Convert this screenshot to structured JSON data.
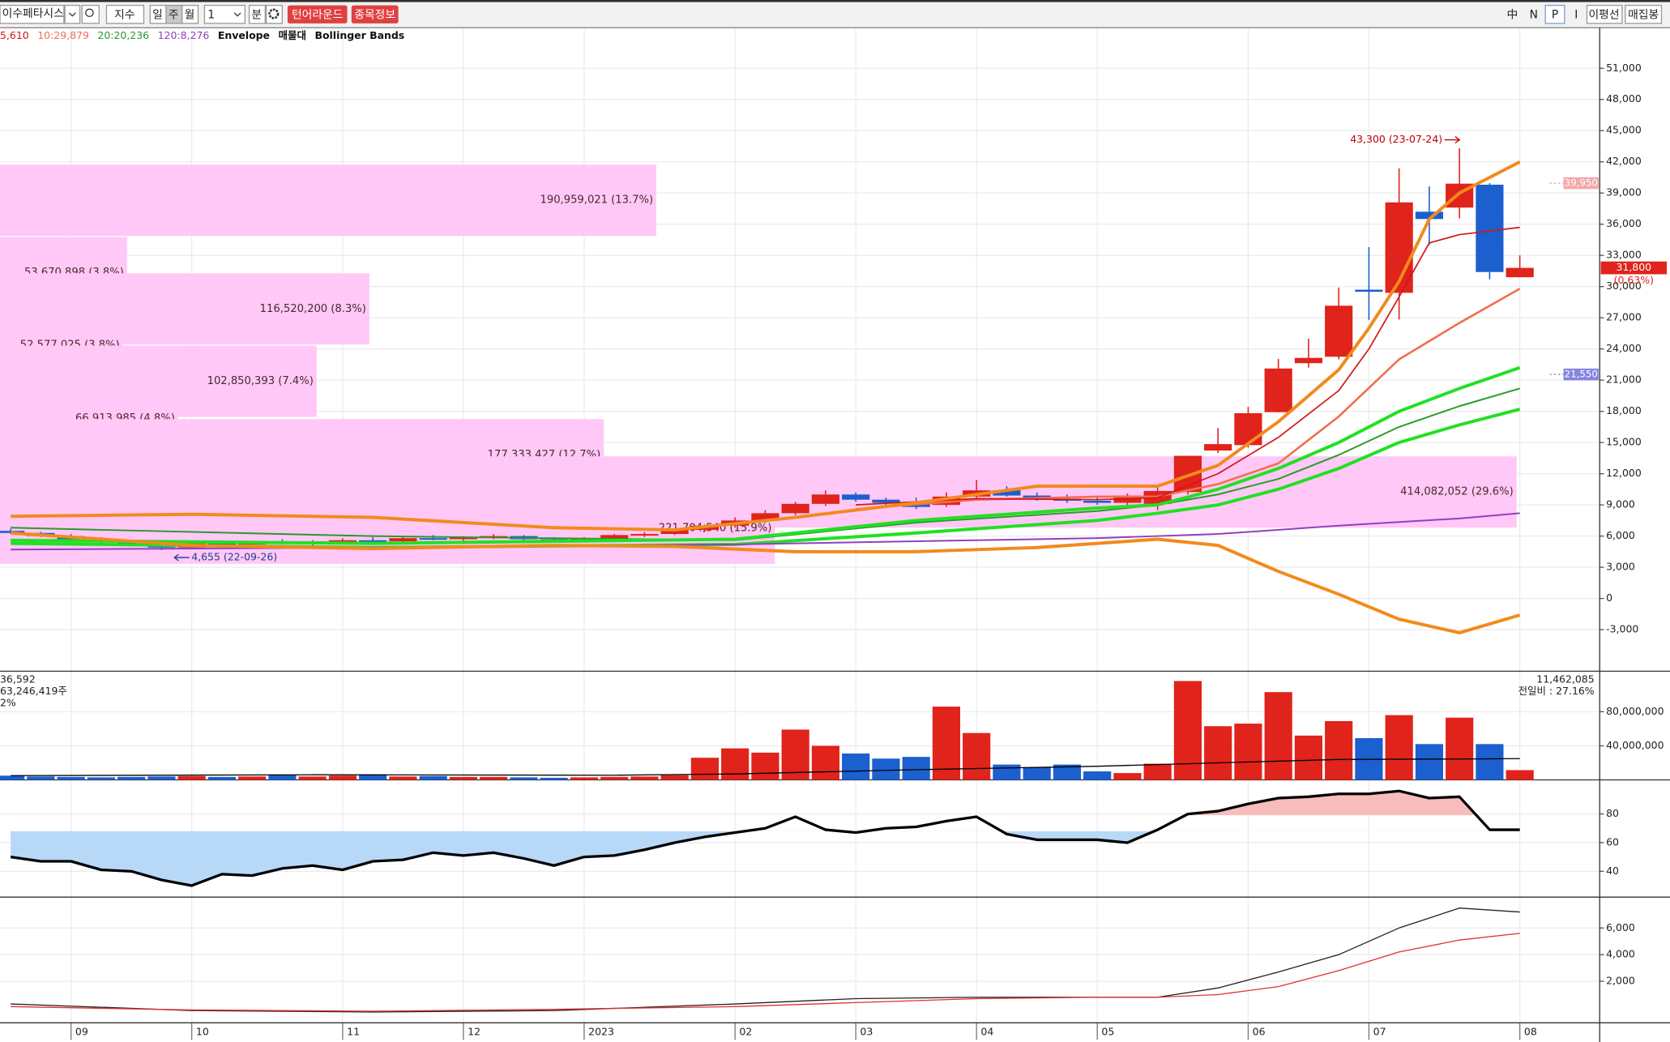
{
  "toolbar": {
    "stock": "이수페타시스",
    "index": "지수",
    "periods": [
      "일",
      "주",
      "월"
    ],
    "count": "1",
    "minute": "분",
    "buttons": [
      "턴어라운드",
      "종목정보"
    ],
    "right": [
      "中",
      "N",
      "P",
      "I",
      "이평선",
      "매집봉"
    ]
  },
  "legend": [
    {
      "text": "5,610",
      "color": "#d01818"
    },
    {
      "text": "10:29,879",
      "color": "#f07050"
    },
    {
      "text": "20:20,236",
      "color": "#2a9a2a"
    },
    {
      "text": "120:8,276",
      "color": "#9040c0"
    },
    {
      "text": "Envelope",
      "color": "#111111"
    },
    {
      "text": "매물대",
      "color": "#111111"
    },
    {
      "text": "Bollinger Bands",
      "color": "#111111"
    }
  ],
  "volume_info": {
    "left": [
      "36,592",
      "63,246,419주",
      "2%"
    ],
    "right": [
      "11,462,085",
      "전일비 : 27.16%"
    ]
  },
  "chart_data": [
    {
      "type": "candlestick",
      "up_color": "#e0231b",
      "down_color": "#1c5fcf",
      "grid": true,
      "categories": [
        null,
        null,
        "09",
        null,
        null,
        null,
        "10",
        null,
        null,
        null,
        null,
        "11",
        null,
        null,
        null,
        "12",
        null,
        null,
        null,
        "2023",
        null,
        null,
        null,
        null,
        "02",
        null,
        null,
        null,
        "03",
        null,
        null,
        null,
        "04",
        null,
        null,
        null,
        "05",
        null,
        null,
        null,
        null,
        "06",
        null,
        null,
        null,
        "07",
        null,
        null,
        null,
        null,
        "08"
      ],
      "open": [
        6500,
        6300,
        6000,
        5700,
        5400,
        5100,
        4900,
        5300,
        5200,
        5400,
        5300,
        5500,
        5600,
        5500,
        5800,
        5700,
        5900,
        6000,
        5700,
        5600,
        5700,
        6100,
        6200,
        6600,
        7000,
        7500,
        8200,
        9100,
        10000,
        9500,
        9200,
        9000,
        9800,
        10400,
        9900,
        9600,
        9400,
        9200,
        9100,
        10240,
        14230,
        14750,
        17920,
        22630,
        23250,
        29700,
        29400,
        37200,
        37600,
        39800,
        30900
      ],
      "high": [
        6700,
        6400,
        6200,
        5900,
        5600,
        5300,
        5500,
        5600,
        5500,
        5700,
        5600,
        5800,
        5900,
        6000,
        6100,
        6000,
        6200,
        6100,
        5900,
        5900,
        6200,
        6400,
        6700,
        7100,
        7800,
        8500,
        9300,
        10400,
        10200,
        9700,
        9700,
        10200,
        11400,
        10800,
        10200,
        10000,
        9800,
        10100,
        10700,
        13720,
        16390,
        18430,
        23040,
        24990,
        29900,
        33800,
        41370,
        39630,
        43300,
        39950,
        33000
      ],
      "low": [
        6200,
        5900,
        5600,
        5300,
        5000,
        4655,
        4800,
        5100,
        5000,
        5200,
        5100,
        5300,
        5400,
        5400,
        5600,
        5500,
        5700,
        5600,
        5400,
        5400,
        5600,
        5900,
        6100,
        6400,
        6800,
        7300,
        8000,
        8900,
        9300,
        8800,
        8600,
        8800,
        9600,
        9800,
        9400,
        9200,
        9000,
        9000,
        8500,
        10000,
        14000,
        14500,
        17900,
        22200,
        23000,
        26800,
        26830,
        34000,
        36560,
        30700,
        30900
      ],
      "close": [
        6300,
        6000,
        5700,
        5400,
        5100,
        4900,
        5300,
        5200,
        5400,
        5300,
        5500,
        5600,
        5500,
        5800,
        5700,
        5900,
        6000,
        5700,
        5600,
        5700,
        6100,
        6200,
        6600,
        7000,
        7500,
        8200,
        9100,
        10000,
        9500,
        9200,
        8800,
        9800,
        10400,
        9900,
        9600,
        9400,
        9200,
        9900,
        10340,
        13720,
        14850,
        17820,
        22120,
        23140,
        28160,
        29500,
        38100,
        36500,
        39900,
        31400,
        31800
      ],
      "ylim": [
        -7000,
        54800
      ],
      "yticks": [
        {
          "value": 51000,
          "label": "51,000"
        },
        {
          "value": 48000,
          "label": "48,000"
        },
        {
          "value": 45000,
          "label": "45,000"
        },
        {
          "value": 42000,
          "label": "42,000"
        },
        {
          "value": 39000,
          "label": "39,000"
        },
        {
          "value": 36000,
          "label": "36,000"
        },
        {
          "value": 33000,
          "label": "33,000"
        },
        {
          "value": 30000,
          "label": "30,000"
        },
        {
          "value": 27000,
          "label": "27,000"
        },
        {
          "value": 24000,
          "label": "24,000"
        },
        {
          "value": 21000,
          "label": "21,000"
        },
        {
          "value": 18000,
          "label": "18,000"
        },
        {
          "value": 15000,
          "label": "15,000"
        },
        {
          "value": 12000,
          "label": "12,000"
        },
        {
          "value": 9000,
          "label": "9,000"
        },
        {
          "value": 6000,
          "label": "6,000"
        },
        {
          "value": 3000,
          "label": "3,000"
        },
        0,
        {
          "value": -3000,
          "label": "-3,000"
        }
      ],
      "lines": [
        {
          "color": "#2a9a2a",
          "width": 1.5,
          "x": [
            0,
            12,
            24,
            30,
            36,
            38,
            40,
            42,
            44,
            46,
            48,
            50
          ],
          "values": [
            6800,
            6000,
            5600,
            7300,
            8400,
            9000,
            10000,
            11500,
            13800,
            16500,
            18500,
            20200
          ]
        },
        {
          "color": "#22e022",
          "width": 3,
          "x": [
            0,
            12,
            24,
            30,
            36,
            38,
            40,
            42,
            44,
            46,
            48,
            50
          ],
          "values": [
            5600,
            5300,
            5700,
            7500,
            8700,
            9000,
            10500,
            12500,
            15000,
            18000,
            20200,
            22200
          ]
        },
        {
          "color": "#22e022",
          "width": 3,
          "x": [
            0,
            12,
            24,
            30,
            36,
            38,
            40,
            42,
            44,
            46,
            48,
            50
          ],
          "values": [
            5300,
            4900,
            5200,
            6300,
            7500,
            8200,
            9000,
            10500,
            12500,
            15000,
            16700,
            18200
          ]
        },
        {
          "color": "#9040c0",
          "width": 1.5,
          "x": [
            0,
            12,
            24,
            30,
            36,
            40,
            44,
            48,
            50
          ],
          "values": [
            4700,
            4900,
            5200,
            5500,
            5800,
            6200,
            7000,
            7700,
            8200
          ]
        },
        {
          "color": "#f07050",
          "width": 2,
          "x": [
            28,
            32,
            36,
            38,
            40,
            42,
            44,
            46,
            48,
            50
          ],
          "values": [
            8600,
            9500,
            9800,
            9800,
            11000,
            13000,
            17500,
            23000,
            26500,
            29800
          ]
        },
        {
          "color": "#d01818",
          "width": 1.3,
          "x": [
            28,
            32,
            36,
            38,
            40,
            42,
            44,
            45,
            46,
            47,
            48,
            50
          ],
          "values": [
            9000,
            9600,
            9500,
            9700,
            12000,
            15500,
            20000,
            24000,
            29000,
            34200,
            35000,
            35700
          ]
        },
        {
          "color": "#f28a1c",
          "width": 3,
          "x": [
            0,
            6,
            12,
            18,
            22,
            26,
            30,
            34,
            38,
            40,
            42,
            44,
            45,
            46,
            47,
            48,
            50
          ],
          "values": [
            7900,
            8100,
            7800,
            6800,
            6600,
            7800,
            9200,
            10800,
            10800,
            12800,
            17000,
            22000,
            26000,
            30500,
            36500,
            39000,
            42000
          ]
        },
        {
          "color": "#f28a1c",
          "width": 3,
          "x": [
            0,
            6,
            12,
            18,
            22,
            26,
            30,
            34,
            38,
            40,
            42,
            44,
            46,
            48,
            50
          ],
          "values": [
            6300,
            5100,
            4800,
            5100,
            5000,
            4500,
            4500,
            4900,
            5700,
            5100,
            2600,
            400,
            -2000,
            -3300,
            -1600
          ]
        }
      ],
      "volume_profile": {
        "color": "#ffc8f7",
        "prices": [
          38300,
          31340,
          27850,
          24370,
          20890,
          17310,
          13820,
          10240,
          6760
        ],
        "values": [
          190959021,
          53670898,
          116520200,
          52577025,
          102850393,
          66913985,
          177333427,
          414082052,
          221704540
        ],
        "value_labels": [
          "190,959,021 (13.7%)",
          "53,670,898 (3.8%)",
          "116,520,200 (8.3%)",
          "52,577,025 (3.8%)",
          "102,850,393 (7.4%)",
          "66,913,985 (4.8%)",
          "177,333,427 (12.7%)",
          "414,082,052 (29.6%)",
          "221,704,540 (15.9%)"
        ]
      },
      "price_labels": [
        {
          "value": 39950,
          "label": "39,950",
          "color": "#f4a8a8"
        },
        {
          "value": 31800,
          "label": "31,800",
          "sub": "(0.63%)",
          "color": "#e0231b"
        },
        {
          "value": 21550,
          "label": "21,550",
          "color": "#8585e0"
        }
      ],
      "annotations": [
        {
          "x": 48,
          "value": 43300,
          "label": "43,300 (23-07-24)",
          "color": "#c00000"
        },
        {
          "x": 5,
          "value": 4655,
          "label": "4,655 (22-09-26)",
          "color": "#1c3f8f"
        }
      ]
    },
    {
      "type": "bar",
      "grid": true,
      "values": [
        5000000,
        4000000,
        3500000,
        3000000,
        3500000,
        4000000,
        4500000,
        3500000,
        4000000,
        5500000,
        4000000,
        5000000,
        6500000,
        4000000,
        4500000,
        3500000,
        3500000,
        3000000,
        2500000,
        3000000,
        3500000,
        4000000,
        5500000,
        26000000,
        37000000,
        32000000,
        59000000,
        40000000,
        31000000,
        25000000,
        27000000,
        86000000,
        55000000,
        18000000,
        15000000,
        18000000,
        10000000,
        8000000,
        19000000,
        116000000,
        63000000,
        66000000,
        103000000,
        52000000,
        69000000,
        49000000,
        76000000,
        42000000,
        73000000,
        42000000,
        11462085
      ],
      "ylim": [
        0,
        125000000
      ],
      "yticks": [
        {
          "value": 80000000,
          "label": "80,000,000"
        },
        {
          "value": 40000000,
          "label": "40,000,000"
        }
      ],
      "ma": {
        "color": "#000000",
        "x": [
          0,
          10,
          20,
          24,
          30,
          36,
          40,
          44,
          48,
          50
        ],
        "values": [
          5000000,
          6000000,
          5500000,
          7000000,
          12000000,
          16000000,
          20000000,
          24000000,
          24500000,
          25000000
        ]
      }
    },
    {
      "type": "line",
      "grid": true,
      "color": "#000000",
      "values": [
        50,
        47,
        47,
        41,
        40,
        34,
        30,
        38,
        37,
        42,
        44,
        41,
        47,
        48,
        53,
        51,
        53,
        49,
        44,
        50,
        51,
        55,
        60,
        64,
        67,
        70,
        78,
        69,
        67,
        70,
        71,
        75,
        78,
        66,
        62,
        62,
        62,
        60,
        69,
        80,
        82,
        87,
        91,
        92,
        94,
        94,
        96,
        91,
        92,
        69,
        69
      ],
      "ylim": [
        22,
        103
      ],
      "yticks": [
        80,
        60,
        40
      ],
      "fills": [
        {
          "level": 68,
          "side": "below",
          "color": "#b8d8f8"
        },
        {
          "level": 79,
          "side": "above",
          "color": "#f8bcbc"
        }
      ]
    },
    {
      "type": "line",
      "grid": true,
      "ylim": [
        -1120,
        8240
      ],
      "yticks": [
        {
          "value": 6000,
          "label": "6,000"
        },
        {
          "value": 4000,
          "label": "4,000"
        },
        {
          "value": 2000,
          "label": "2,000"
        }
      ],
      "lines": [
        {
          "color": "#222222",
          "width": 1,
          "x": [
            0,
            6,
            12,
            18,
            24,
            28,
            32,
            36,
            38,
            40,
            42,
            44,
            46,
            48,
            50
          ],
          "values": [
            300,
            -200,
            -300,
            -200,
            300,
            700,
            800,
            800,
            800,
            1500,
            2700,
            4000,
            6000,
            7500,
            7200
          ]
        },
        {
          "color": "#e03030",
          "width": 1,
          "x": [
            0,
            6,
            12,
            18,
            24,
            28,
            32,
            36,
            38,
            40,
            42,
            44,
            46,
            48,
            50
          ],
          "values": [
            100,
            -150,
            -250,
            -100,
            100,
            400,
            700,
            800,
            800,
            1000,
            1600,
            2800,
            4200,
            5100,
            5600
          ]
        }
      ]
    }
  ]
}
